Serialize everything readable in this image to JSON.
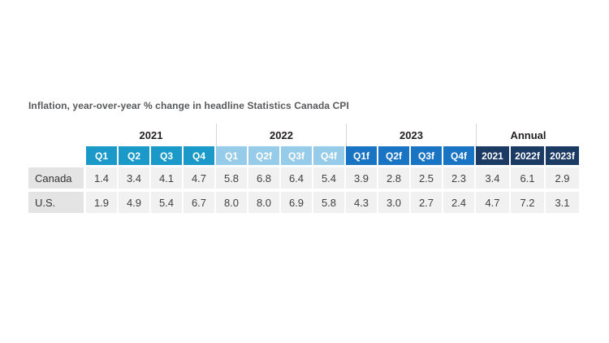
{
  "title": "Inflation, year-over-year % change in headline Statistics Canada CPI",
  "colors": {
    "group_2021": "#1b9ac9",
    "group_2022": "#96cbea",
    "group_2023": "#1a74c4",
    "group_annual": "#1b3a64",
    "row_label_bg": "#e4e4e4",
    "data_cell_bg": "#f1f1f1",
    "divider": "#d6d6d6",
    "title_text": "#58595b",
    "header_text": "#ffffff"
  },
  "table": {
    "year_groups": [
      "2021",
      "2022",
      "2023",
      "Annual"
    ],
    "quarters_2021": [
      "Q1",
      "Q2",
      "Q3",
      "Q4"
    ],
    "quarters_2022": [
      "Q1",
      "Q2f",
      "Q3f",
      "Q4f"
    ],
    "quarters_2023": [
      "Q1f",
      "Q2f",
      "Q3f",
      "Q4f"
    ],
    "annual_cols": [
      "2021",
      "2022f",
      "2023f"
    ],
    "rows": [
      {
        "label": "Canada",
        "values": [
          "1.4",
          "3.4",
          "4.1",
          "4.7",
          "5.8",
          "6.8",
          "6.4",
          "5.4",
          "3.9",
          "2.8",
          "2.5",
          "2.3",
          "3.4",
          "6.1",
          "2.9"
        ]
      },
      {
        "label": "U.S.",
        "values": [
          "1.9",
          "4.9",
          "5.4",
          "6.7",
          "8.0",
          "8.0",
          "6.9",
          "5.8",
          "4.3",
          "3.0",
          "2.7",
          "2.4",
          "4.7",
          "7.2",
          "3.1"
        ]
      }
    ]
  },
  "chart_data": {
    "type": "table",
    "title": "Inflation, year-over-year % change in headline Statistics Canada CPI",
    "column_groups": [
      "2021",
      "2022",
      "2023",
      "Annual"
    ],
    "columns": [
      "2021 Q1",
      "2021 Q2",
      "2021 Q3",
      "2021 Q4",
      "2022 Q1",
      "2022 Q2f",
      "2022 Q3f",
      "2022 Q4f",
      "2023 Q1f",
      "2023 Q2f",
      "2023 Q3f",
      "2023 Q4f",
      "Annual 2021",
      "Annual 2022f",
      "Annual 2023f"
    ],
    "rows": [
      {
        "label": "Canada",
        "values": [
          1.4,
          3.4,
          4.1,
          4.7,
          5.8,
          6.8,
          6.4,
          5.4,
          3.9,
          2.8,
          2.5,
          2.3,
          3.4,
          6.1,
          2.9
        ]
      },
      {
        "label": "U.S.",
        "values": [
          1.9,
          4.9,
          5.4,
          6.7,
          8.0,
          8.0,
          6.9,
          5.8,
          4.3,
          3.0,
          2.7,
          2.4,
          4.7,
          7.2,
          3.1
        ]
      }
    ]
  }
}
